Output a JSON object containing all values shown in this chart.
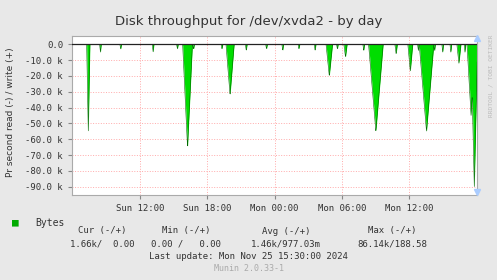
{
  "title": "Disk throughput for /dev/xvda2 - by day",
  "ylabel": "Pr second read (-) / write (+)",
  "background_color": "#e8e8e8",
  "plot_bg_color": "#ffffff",
  "grid_color_h": "#ffaaaa",
  "grid_color_v": "#ffaaaa",
  "ylim": [
    -95000,
    5000
  ],
  "yticks": [
    0,
    -10000,
    -20000,
    -30000,
    -40000,
    -50000,
    -60000,
    -70000,
    -80000,
    -90000
  ],
  "ytick_labels": [
    "0.0",
    "-10.0 k",
    "-20.0 k",
    "-30.0 k",
    "-40.0 k",
    "-50.0 k",
    "-60.0 k",
    "-70.0 k",
    "-80.0 k",
    "-90.0 k"
  ],
  "line_color": "#00dd00",
  "line_color_dark": "#006600",
  "border_color": "#aaaaaa",
  "title_color": "#333333",
  "legend_label": "Bytes",
  "legend_color": "#00aa00",
  "cur_label": "Cur (-/+)",
  "min_label": "Min (-/+)",
  "avg_label": "Avg (-/+)",
  "max_label": "Max (-/+)",
  "cur_val": "1.66k/  0.00",
  "min_val": "0.00 /   0.00",
  "avg_val": "1.46k/977.03m",
  "max_val": "86.14k/188.58",
  "last_update": "Last update: Mon Nov 25 15:30:00 2024",
  "munin_version": "Munin 2.0.33-1",
  "watermark": "RRDTOOL / TOBI OETIKER",
  "xtick_labels": [
    "Sun 12:00",
    "Sun 18:00",
    "Mon 00:00",
    "Mon 06:00",
    "Mon 12:00"
  ],
  "xtick_pos": [
    0.167,
    0.333,
    0.5,
    0.667,
    0.833
  ],
  "spike_positions": [
    0.04,
    0.07,
    0.12,
    0.2,
    0.26,
    0.285,
    0.3,
    0.37,
    0.39,
    0.43,
    0.48,
    0.52,
    0.56,
    0.6,
    0.635,
    0.655,
    0.675,
    0.72,
    0.75,
    0.8,
    0.835,
    0.855,
    0.875,
    0.895,
    0.915,
    0.935,
    0.955,
    0.97,
    0.985,
    0.993
  ],
  "spike_depths": [
    -55000,
    -5000,
    -3000,
    -5000,
    -3000,
    -65000,
    -3000,
    -3000,
    -32000,
    -4000,
    -3000,
    -4000,
    -3000,
    -4000,
    -20000,
    -3000,
    -8000,
    -4000,
    -55000,
    -6000,
    -17000,
    -4000,
    -55000,
    -4000,
    -5000,
    -5000,
    -12000,
    -5000,
    -45000,
    -90000
  ],
  "spike_widths": [
    0.004,
    0.002,
    0.002,
    0.002,
    0.002,
    0.012,
    0.002,
    0.002,
    0.01,
    0.002,
    0.002,
    0.002,
    0.002,
    0.002,
    0.008,
    0.002,
    0.004,
    0.002,
    0.018,
    0.003,
    0.006,
    0.002,
    0.018,
    0.002,
    0.002,
    0.002,
    0.005,
    0.002,
    0.01,
    0.008
  ]
}
